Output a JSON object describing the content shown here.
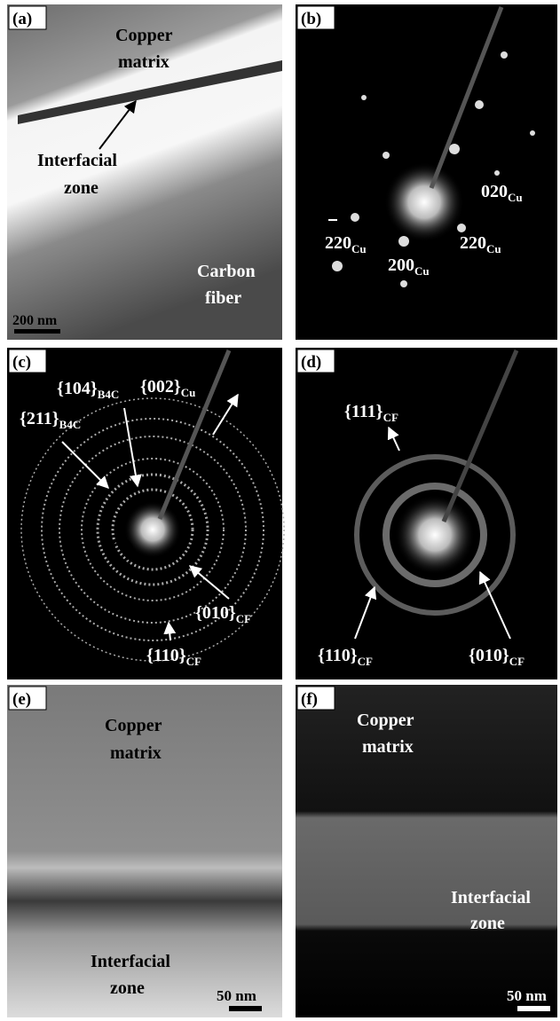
{
  "panels": [
    {
      "label": "(a)",
      "annotations": [
        "Copper",
        "matrix",
        "Interfacial",
        "zone",
        "Carbon",
        "fiber"
      ],
      "scale_bar": "200 nm"
    },
    {
      "label": "(b)",
      "annotations": [
        {
          "main": "020",
          "sub": "Cu"
        },
        {
          "main": "220",
          "sub": "Cu"
        },
        {
          "main": "220",
          "sub": "Cu"
        },
        {
          "main": "200",
          "sub": "Cu"
        }
      ]
    },
    {
      "label": "(c)",
      "annotations": [
        {
          "main": "{002}",
          "sub": "Cu"
        },
        {
          "main": "{104}",
          "sub": "B4C"
        },
        {
          "main": "{211}",
          "sub": "B4C"
        },
        {
          "main": "{010}",
          "sub": "CF"
        },
        {
          "main": "{110}",
          "sub": "CF"
        }
      ]
    },
    {
      "label": "(d)",
      "annotations": [
        {
          "main": "{111}",
          "sub": "CF"
        },
        {
          "main": "{110}",
          "sub": "CF"
        },
        {
          "main": "{010}",
          "sub": "CF"
        }
      ]
    },
    {
      "label": "(e)",
      "annotations": [
        "Copper",
        "matrix",
        "Interfacial",
        "zone"
      ],
      "scale_bar": "50 nm"
    },
    {
      "label": "(f)",
      "annotations": [
        "Copper",
        "matrix",
        "Interfacial",
        "zone"
      ],
      "scale_bar": "50 nm"
    }
  ]
}
